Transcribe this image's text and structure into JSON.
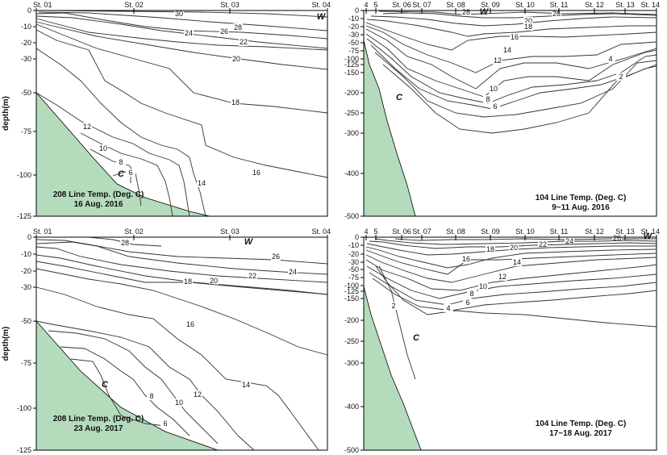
{
  "panels": [
    {
      "id": "p208_2016",
      "title_line1": "208 Line Temp. (Deg. C)",
      "title_line2": "16 Aug. 2016",
      "ylabel": "depth(m)",
      "ylim": [
        0,
        -125
      ],
      "yticks": [
        0,
        -10,
        -20,
        -30,
        -50,
        -75,
        -100,
        -125
      ],
      "stations": [
        "St. 01",
        "St. 02",
        "St. 03",
        "St. 04"
      ],
      "water_mass_labels": [
        "W",
        "C"
      ],
      "contour_levels": [
        30,
        28,
        26,
        24,
        22,
        20,
        18,
        16,
        14,
        12,
        10,
        8,
        6
      ]
    },
    {
      "id": "p104_2016",
      "title_line1": "104 Line Temp. (Deg. C)",
      "title_line2": "9~11 Aug. 2016",
      "ylabel": "",
      "ylim": [
        0,
        -500
      ],
      "yticks": [
        0,
        -10,
        -20,
        -30,
        -50,
        -75,
        -100,
        -125,
        -150,
        -200,
        -250,
        -300,
        -400,
        -500
      ],
      "stations": [
        "4",
        "5",
        "St. 06",
        "St. 07",
        "St. 08",
        "St. 09",
        "St. 10",
        "St. 11",
        "St. 12",
        "St. 13",
        "St. 14"
      ],
      "water_mass_labels": [
        "W",
        "C"
      ],
      "contour_levels": [
        28,
        26,
        20,
        18,
        16,
        14,
        12,
        10,
        8,
        6,
        4,
        2
      ]
    },
    {
      "id": "p208_2017",
      "title_line1": "208 Line Temp. (Deg. C)",
      "title_line2": "23 Aug. 2017",
      "ylabel": "depth(m)",
      "ylim": [
        0,
        -125
      ],
      "yticks": [
        0,
        -10,
        -20,
        -30,
        -50,
        -75,
        -100,
        -125
      ],
      "stations": [
        "St. 01",
        "St. 02",
        "St. 03",
        "St. 04"
      ],
      "water_mass_labels": [
        "W",
        "C"
      ],
      "contour_levels": [
        28,
        26,
        24,
        22,
        20,
        18,
        16,
        14,
        12,
        10,
        8,
        6
      ]
    },
    {
      "id": "p104_2017",
      "title_line1": "104 Line  Temp. (Deg. C)",
      "title_line2": "17~18 Aug. 2017",
      "ylabel": "",
      "ylim": [
        0,
        -500
      ],
      "yticks": [
        0,
        -10,
        -20,
        -30,
        -50,
        -75,
        -100,
        -125,
        -150,
        -200,
        -250,
        -300,
        -400,
        -500
      ],
      "stations": [
        "4",
        "5",
        "St. 06",
        "St. 07",
        "St. 08",
        "St. 09",
        "St. 10",
        "St. 11",
        "St. 12",
        "St. 13",
        "St. 14"
      ],
      "water_mass_labels": [
        "W",
        "C"
      ],
      "contour_levels": [
        26,
        24,
        22,
        20,
        18,
        16,
        14,
        12,
        10,
        8,
        6,
        4,
        2
      ]
    }
  ],
  "chart_data": [
    {
      "type": "contour",
      "variable": "Temp. (Deg. C)",
      "section": "208 Line",
      "date": "16 Aug. 2016",
      "x": [
        "St. 01",
        "St. 02",
        "St. 03",
        "St. 04"
      ],
      "ylim": [
        0,
        -125
      ],
      "levels": [
        30,
        28,
        26,
        24,
        22,
        20,
        18,
        16,
        14,
        12,
        10,
        8,
        6
      ]
    },
    {
      "type": "contour",
      "variable": "Temp. (Deg. C)",
      "section": "104 Line",
      "date": "9~11 Aug. 2016",
      "x": [
        "4",
        "5",
        "St. 06",
        "St. 07",
        "St. 08",
        "St. 09",
        "St. 10",
        "St. 11",
        "St. 12",
        "St. 13",
        "St. 14"
      ],
      "ylim": [
        0,
        -500
      ],
      "levels": [
        28,
        26,
        20,
        18,
        16,
        14,
        12,
        10,
        8,
        6,
        4,
        2
      ]
    },
    {
      "type": "contour",
      "variable": "Temp. (Deg. C)",
      "section": "208 Line",
      "date": "23 Aug. 2017",
      "x": [
        "St. 01",
        "St. 02",
        "St. 03",
        "St. 04"
      ],
      "ylim": [
        0,
        -125
      ],
      "levels": [
        28,
        26,
        24,
        22,
        20,
        18,
        16,
        14,
        12,
        10,
        8,
        6
      ]
    },
    {
      "type": "contour",
      "variable": "Temp. (Deg. C)",
      "section": "104 Line",
      "date": "17~18 Aug. 2017",
      "x": [
        "4",
        "5",
        "St. 06",
        "St. 07",
        "St. 08",
        "St. 09",
        "St. 10",
        "St. 11",
        "St. 12",
        "St. 13",
        "St. 14"
      ],
      "ylim": [
        0,
        -500
      ],
      "levels": [
        26,
        24,
        22,
        20,
        18,
        16,
        14,
        12,
        10,
        8,
        6,
        4,
        2
      ]
    }
  ],
  "colors": {
    "seafloor": "#b5dbbd",
    "contour": "#333333",
    "frame": "#000000"
  }
}
